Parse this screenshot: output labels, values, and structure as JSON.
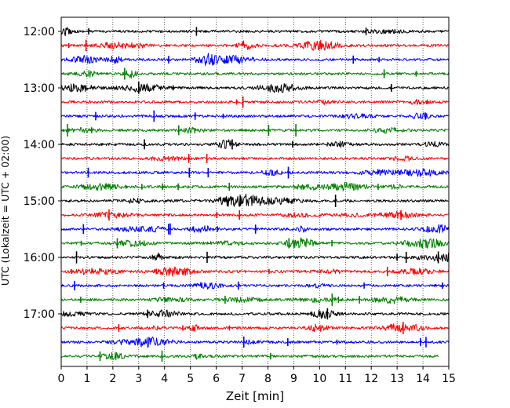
{
  "chart_data": {
    "type": "line",
    "xlabel": "Zeit  [min]",
    "ylabel": "UTC (Lokalzeit = UTC + 02:00)",
    "xlim": [
      0,
      15
    ],
    "x_ticks": [
      "0",
      "1",
      "2",
      "3",
      "4",
      "5",
      "6",
      "7",
      "8",
      "9",
      "10",
      "11",
      "12",
      "13",
      "14",
      "15"
    ],
    "y_ticks": [
      "12:00",
      "13:00",
      "14:00",
      "15:00",
      "16:00",
      "17:00"
    ],
    "grid": "vertical dotted",
    "row_interval_min": 15,
    "colors": [
      "#000000",
      "#ff0000",
      "#0000ff",
      "#008000"
    ],
    "traces": [
      {
        "start": "12:00",
        "color": "#000000",
        "end_min": 15
      },
      {
        "start": "12:15",
        "color": "#ff0000",
        "end_min": 15
      },
      {
        "start": "12:30",
        "color": "#0000ff",
        "end_min": 15
      },
      {
        "start": "12:45",
        "color": "#008000",
        "end_min": 15
      },
      {
        "start": "13:00",
        "color": "#000000",
        "end_min": 15
      },
      {
        "start": "13:15",
        "color": "#ff0000",
        "end_min": 15
      },
      {
        "start": "13:30",
        "color": "#0000ff",
        "end_min": 15
      },
      {
        "start": "13:45",
        "color": "#008000",
        "end_min": 15
      },
      {
        "start": "14:00",
        "color": "#000000",
        "end_min": 15
      },
      {
        "start": "14:15",
        "color": "#ff0000",
        "end_min": 15
      },
      {
        "start": "14:30",
        "color": "#0000ff",
        "end_min": 15
      },
      {
        "start": "14:45",
        "color": "#008000",
        "end_min": 15
      },
      {
        "start": "15:00",
        "color": "#000000",
        "end_min": 15
      },
      {
        "start": "15:15",
        "color": "#ff0000",
        "end_min": 15
      },
      {
        "start": "15:30",
        "color": "#0000ff",
        "end_min": 15
      },
      {
        "start": "15:45",
        "color": "#008000",
        "end_min": 15
      },
      {
        "start": "16:00",
        "color": "#000000",
        "end_min": 15
      },
      {
        "start": "16:15",
        "color": "#ff0000",
        "end_min": 15
      },
      {
        "start": "16:30",
        "color": "#0000ff",
        "end_min": 15
      },
      {
        "start": "16:45",
        "color": "#008000",
        "end_min": 15
      },
      {
        "start": "17:00",
        "color": "#000000",
        "end_min": 15
      },
      {
        "start": "17:15",
        "color": "#ff0000",
        "end_min": 15
      },
      {
        "start": "17:30",
        "color": "#0000ff",
        "end_min": 15
      },
      {
        "start": "17:45",
        "color": "#008000",
        "end_min": 14.6
      }
    ]
  }
}
